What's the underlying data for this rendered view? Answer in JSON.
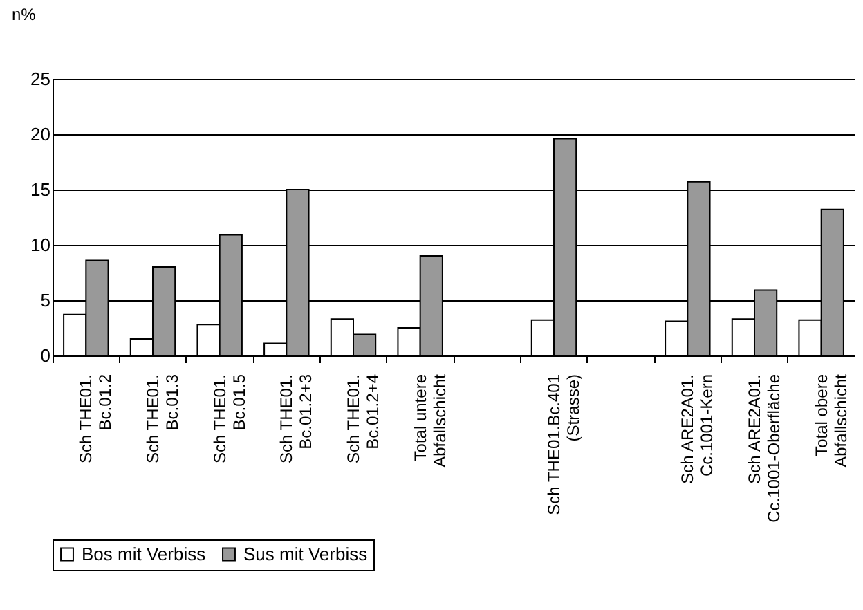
{
  "chart_data": {
    "type": "bar",
    "ylabel": "n%",
    "categories": [
      "Sch THE01.\nBc.01.2",
      "Sch THE01.\nBc.01.3",
      "Sch THE01.\nBc.01.5",
      "Sch THE01.\nBc.01.2+3",
      "Sch THE01.\nBc.01.2+4",
      "Total untere\nAbfallschicht",
      null,
      "Sch THE01.Bc.401\n(Strasse)",
      null,
      "Sch ARE2A01.\nCc.1001-Kern",
      "Sch ARE2A01.\nCc.1001-Oberfläche",
      "Total obere\nAbfallschicht"
    ],
    "series": [
      {
        "name": "Bos mit Verbiss",
        "color": "#ffffff",
        "values": [
          3.7,
          1.5,
          2.8,
          1.1,
          3.3,
          2.5,
          null,
          3.2,
          null,
          3.1,
          3.3,
          3.2
        ]
      },
      {
        "name": "Sus mit Verbiss",
        "color": "#999999",
        "values": [
          8.6,
          8.0,
          10.9,
          15.0,
          1.9,
          9.0,
          null,
          19.6,
          null,
          15.7,
          5.9,
          13.2
        ]
      }
    ],
    "ylim": [
      0,
      25
    ],
    "yticks": [
      0,
      5,
      10,
      15,
      20,
      25
    ],
    "grid": "y",
    "legend": "bottom"
  }
}
